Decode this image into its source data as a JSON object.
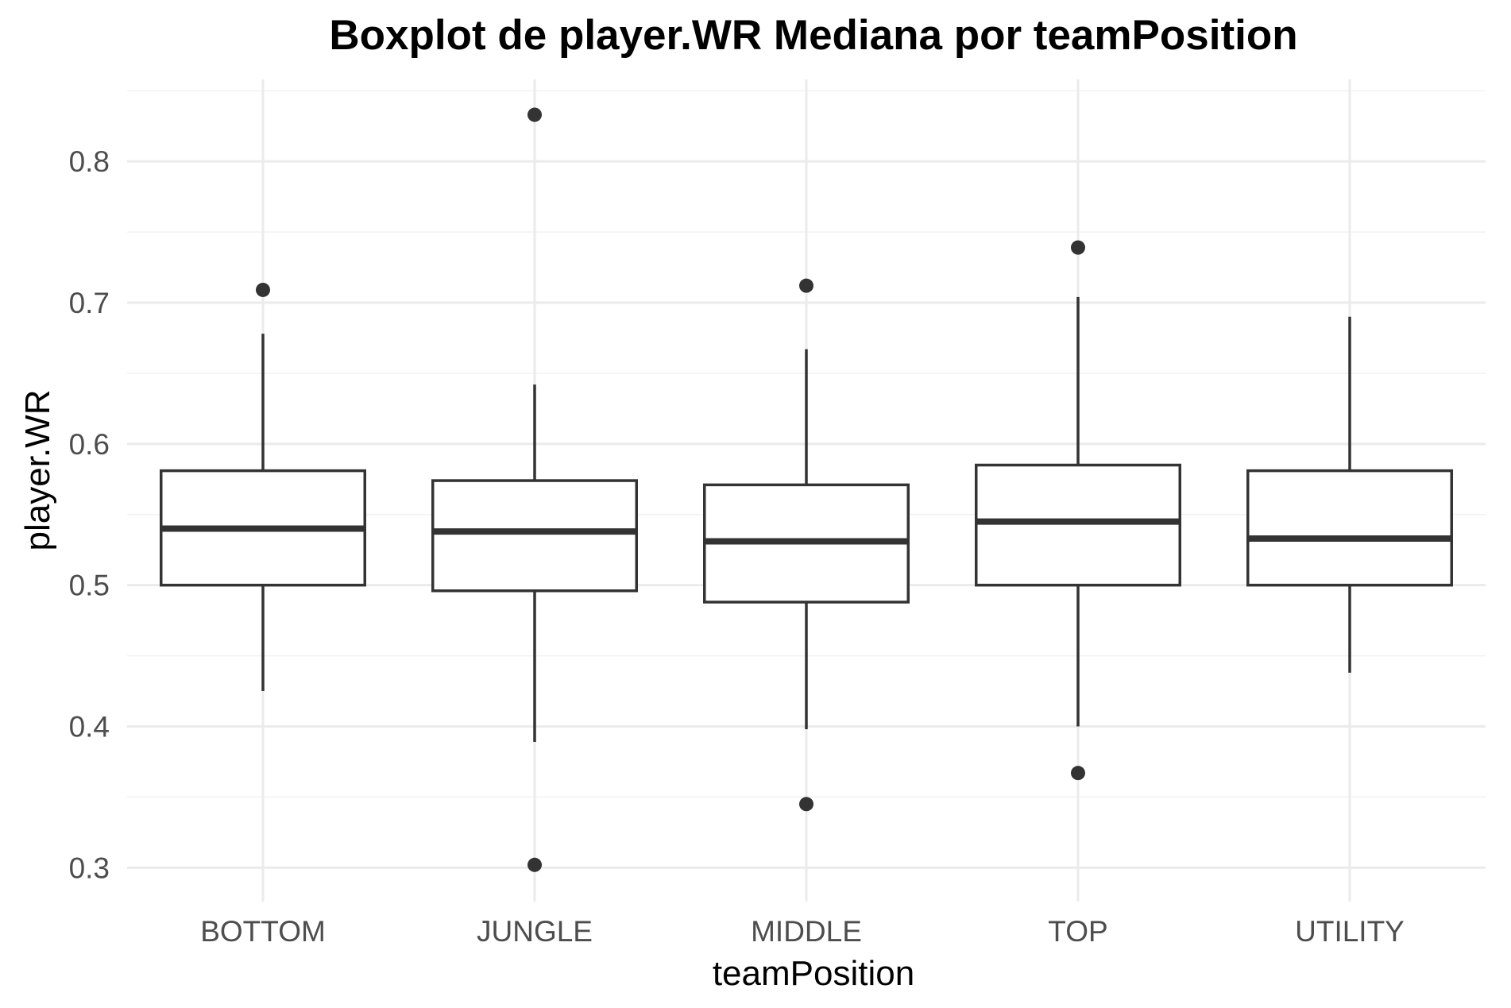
{
  "chart_data": {
    "type": "boxplot",
    "title": "Boxplot de player.WR Mediana por teamPosition",
    "xlabel": "teamPosition",
    "ylabel": "player.WR",
    "ylim": [
      0.276,
      0.858
    ],
    "yticks": [
      {
        "value": 0.3,
        "label": "0.3"
      },
      {
        "value": 0.4,
        "label": "0.4"
      },
      {
        "value": 0.5,
        "label": "0.5"
      },
      {
        "value": 0.6,
        "label": "0.6"
      },
      {
        "value": 0.7,
        "label": "0.7"
      },
      {
        "value": 0.8,
        "label": "0.8"
      }
    ],
    "grid": true,
    "legend": "none",
    "colors": {
      "box_stroke": "#333333",
      "box_fill": "#ffffff",
      "outlier": "#333333",
      "grid_major": "#ebebeb",
      "grid_minor": "#f3f3f3",
      "tick_text": "#4d4d4d"
    },
    "categories": [
      "BOTTOM",
      "JUNGLE",
      "MIDDLE",
      "TOP",
      "UTILITY"
    ],
    "boxes": [
      {
        "category": "BOTTOM",
        "whisker_low": 0.425,
        "q1": 0.5,
        "median": 0.54,
        "q3": 0.581,
        "whisker_high": 0.678,
        "outliers": [
          0.709
        ]
      },
      {
        "category": "JUNGLE",
        "whisker_low": 0.389,
        "q1": 0.496,
        "median": 0.538,
        "q3": 0.574,
        "whisker_high": 0.642,
        "outliers": [
          0.833,
          0.302
        ]
      },
      {
        "category": "MIDDLE",
        "whisker_low": 0.398,
        "q1": 0.488,
        "median": 0.531,
        "q3": 0.571,
        "whisker_high": 0.667,
        "outliers": [
          0.712,
          0.345
        ]
      },
      {
        "category": "TOP",
        "whisker_low": 0.4,
        "q1": 0.5,
        "median": 0.545,
        "q3": 0.585,
        "whisker_high": 0.704,
        "outliers": [
          0.739,
          0.367
        ]
      },
      {
        "category": "UTILITY",
        "whisker_low": 0.438,
        "q1": 0.5,
        "median": 0.533,
        "q3": 0.581,
        "whisker_high": 0.69,
        "outliers": []
      }
    ]
  }
}
